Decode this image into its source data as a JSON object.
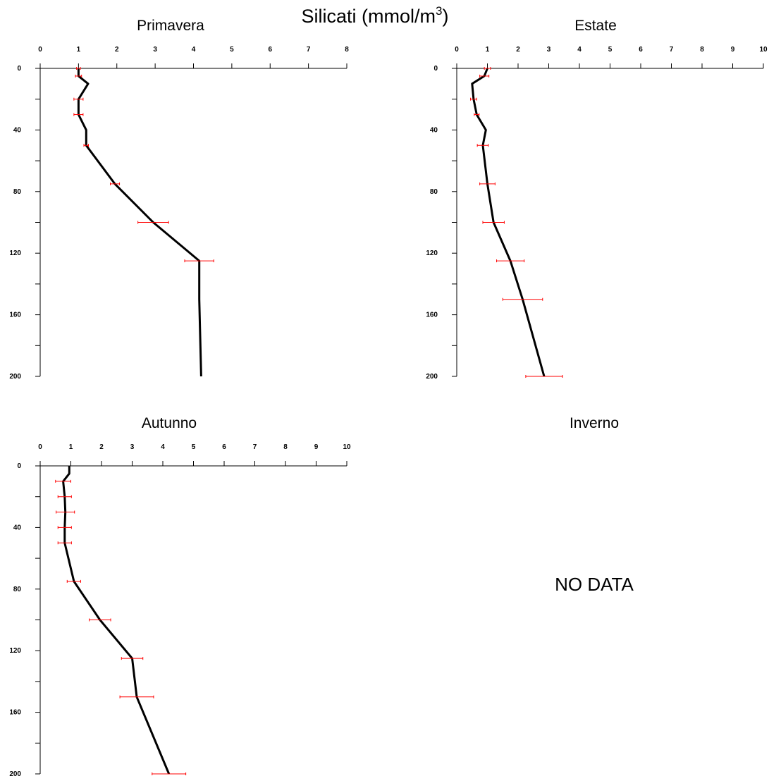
{
  "figure": {
    "title_main": "Silicati (mmol/m",
    "title_sup": "3",
    "title_close": ")"
  },
  "chart_data": [
    {
      "type": "line",
      "title": "Primavera",
      "xlabel": "",
      "ylabel": "",
      "x_axis_position": "top",
      "y_inverted": true,
      "xlim": [
        0,
        8
      ],
      "ylim": [
        0,
        200
      ],
      "x_ticks": [
        0,
        1,
        2,
        3,
        4,
        5,
        6,
        7,
        8
      ],
      "y_ticks_labeled": [
        0,
        40,
        80,
        120,
        160,
        200
      ],
      "y_ticks_minor": [
        20,
        60,
        100,
        140,
        180
      ],
      "grid": false,
      "series": [
        {
          "line_color": "#000000",
          "errorbar_color": "#ff0000",
          "depth": [
            0,
            5,
            10,
            20,
            30,
            40,
            50,
            75,
            100,
            125,
            150,
            200
          ],
          "value": [
            1.0,
            1.0,
            1.25,
            1.0,
            1.0,
            1.2,
            1.2,
            1.95,
            2.95,
            4.15,
            4.15,
            4.2
          ],
          "error": [
            0.05,
            0.08,
            0,
            0.12,
            0.12,
            0,
            0.06,
            0.12,
            0.4,
            0.38,
            0,
            0
          ]
        }
      ]
    },
    {
      "type": "line",
      "title": "Estate",
      "xlabel": "",
      "ylabel": "",
      "x_axis_position": "top",
      "y_inverted": true,
      "xlim": [
        0,
        10
      ],
      "ylim": [
        0,
        200
      ],
      "x_ticks": [
        0,
        1,
        2,
        3,
        4,
        5,
        6,
        7,
        8,
        9,
        10
      ],
      "y_ticks_labeled": [
        0,
        40,
        80,
        120,
        160,
        200
      ],
      "y_ticks_minor": [
        20,
        60,
        100,
        140,
        180
      ],
      "grid": false,
      "series": [
        {
          "line_color": "#000000",
          "errorbar_color": "#ff0000",
          "depth": [
            0,
            5,
            10,
            20,
            30,
            40,
            50,
            75,
            100,
            125,
            150,
            200
          ],
          "value": [
            1.0,
            0.9,
            0.5,
            0.55,
            0.65,
            0.95,
            0.85,
            1.0,
            1.2,
            1.75,
            2.15,
            2.85
          ],
          "error": [
            0.1,
            0.15,
            0,
            0.1,
            0.08,
            0,
            0.18,
            0.25,
            0.35,
            0.45,
            0.65,
            0.6
          ]
        }
      ]
    },
    {
      "type": "line",
      "title": "Autunno",
      "xlabel": "",
      "ylabel": "",
      "x_axis_position": "top",
      "y_inverted": true,
      "xlim": [
        0,
        10
      ],
      "ylim": [
        0,
        200
      ],
      "x_ticks": [
        0,
        1,
        2,
        3,
        4,
        5,
        6,
        7,
        8,
        9,
        10
      ],
      "y_ticks_labeled": [
        0,
        40,
        80,
        120,
        160,
        200
      ],
      "y_ticks_minor": [
        20,
        60,
        100,
        140,
        180
      ],
      "grid": false,
      "series": [
        {
          "line_color": "#000000",
          "errorbar_color": "#ff0000",
          "depth": [
            0,
            5,
            10,
            20,
            30,
            40,
            50,
            75,
            100,
            125,
            150,
            200
          ],
          "value": [
            0.95,
            0.95,
            0.75,
            0.8,
            0.82,
            0.8,
            0.8,
            1.1,
            1.95,
            3.0,
            3.15,
            4.2
          ],
          "error": [
            0,
            0,
            0.25,
            0.22,
            0.3,
            0.22,
            0.22,
            0.22,
            0.35,
            0.35,
            0.55,
            0.55
          ]
        }
      ]
    },
    {
      "type": "line",
      "title": "Inverno",
      "message": "NO DATA",
      "series": []
    }
  ]
}
